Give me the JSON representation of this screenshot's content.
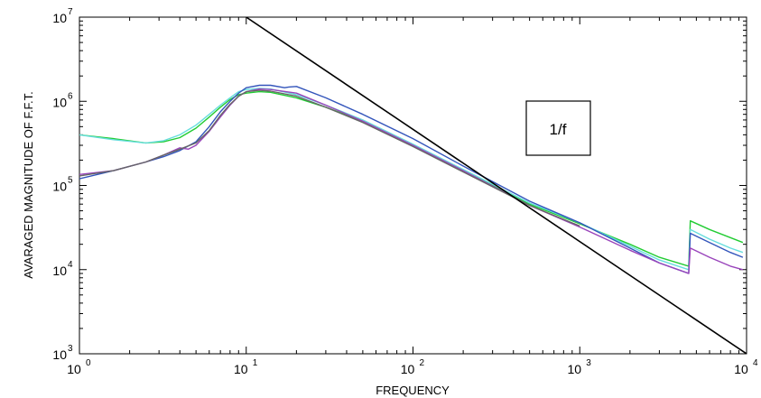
{
  "chart_data": {
    "type": "line",
    "title": "",
    "xlabel": "FREQUENCY",
    "ylabel": "AVARAGED MAGNITUDE OF F.F.T.",
    "x_scale": "log",
    "y_scale": "log",
    "xlim": [
      1,
      10000
    ],
    "ylim": [
      1000,
      10000000
    ],
    "grid": false,
    "x_ticks": [
      {
        "base": "10",
        "exp": "0",
        "value": 1
      },
      {
        "base": "10",
        "exp": "1",
        "value": 10
      },
      {
        "base": "10",
        "exp": "2",
        "value": 100
      },
      {
        "base": "10",
        "exp": "3",
        "value": 1000
      },
      {
        "base": "10",
        "exp": "4",
        "value": 10000
      }
    ],
    "y_ticks": [
      {
        "base": "10",
        "exp": "3",
        "value": 1000
      },
      {
        "base": "10",
        "exp": "4",
        "value": 10000
      },
      {
        "base": "10",
        "exp": "5",
        "value": 100000
      },
      {
        "base": "10",
        "exp": "6",
        "value": 1000000
      },
      {
        "base": "10",
        "exp": "7",
        "value": 10000000
      }
    ],
    "annotation": {
      "text": "1/f"
    },
    "reference_line": {
      "color": "#000000",
      "x": [
        10,
        10000
      ],
      "y": [
        10000000,
        1000
      ]
    },
    "series": [
      {
        "color": "#22cc33",
        "x": [
          1,
          1.6,
          2.5,
          3.2,
          4,
          5,
          6,
          7,
          8,
          9,
          10,
          12,
          14,
          20,
          30,
          50,
          100,
          200,
          500,
          1000,
          2000,
          3000,
          4500,
          4600,
          6000,
          8000,
          9500
        ],
        "y": [
          400000,
          360000,
          320000,
          330000,
          370000,
          480000,
          650000,
          850000,
          1050000,
          1200000,
          1250000,
          1300000,
          1280000,
          1100000,
          850000,
          580000,
          300000,
          150000,
          60000,
          35000,
          20000,
          14000,
          11000,
          38000,
          30000,
          24000,
          21000
        ]
      },
      {
        "color": "#66dddd",
        "x": [
          1,
          1.6,
          2.5,
          3.2,
          4,
          5,
          6,
          7,
          8,
          9,
          10,
          12,
          14,
          20,
          30,
          50,
          100,
          200,
          500,
          1000,
          2000,
          3000,
          4500,
          4600,
          6000,
          8000,
          9500
        ],
        "y": [
          400000,
          350000,
          320000,
          340000,
          400000,
          520000,
          700000,
          900000,
          1100000,
          1300000,
          1380000,
          1420000,
          1400000,
          1200000,
          900000,
          600000,
          310000,
          155000,
          62000,
          36000,
          19000,
          13000,
          10000,
          30000,
          23000,
          18000,
          16000
        ]
      },
      {
        "color": "#3355bb",
        "x": [
          1,
          1.6,
          2.5,
          3.2,
          4,
          5,
          6,
          7,
          8,
          9,
          10,
          12,
          14,
          17,
          18,
          20,
          30,
          50,
          100,
          200,
          500,
          1000,
          2000,
          3000,
          4500,
          4600,
          6000,
          8000,
          9500
        ],
        "y": [
          120000,
          150000,
          190000,
          220000,
          260000,
          330000,
          500000,
          750000,
          1000000,
          1250000,
          1450000,
          1550000,
          1550000,
          1450000,
          1480000,
          1500000,
          1100000,
          700000,
          360000,
          170000,
          65000,
          36000,
          18000,
          12000,
          9000,
          27000,
          21000,
          16000,
          14000
        ]
      },
      {
        "color": "#9944bb",
        "x": [
          1,
          1.6,
          2.5,
          3.2,
          4,
          4.5,
          5,
          6,
          7,
          8,
          9,
          10,
          12,
          14,
          20,
          30,
          50,
          100,
          200,
          500,
          1000,
          2000,
          3000,
          4500,
          4600,
          6000,
          8000,
          9500
        ],
        "y": [
          135000,
          150000,
          190000,
          230000,
          280000,
          270000,
          300000,
          440000,
          650000,
          900000,
          1150000,
          1300000,
          1400000,
          1380000,
          1250000,
          900000,
          580000,
          300000,
          150000,
          58000,
          32000,
          17000,
          12000,
          9000,
          18000,
          14000,
          11000,
          10000
        ]
      },
      {
        "color": "#666666",
        "x": [
          1,
          1.6,
          2.5,
          3.2,
          4,
          5,
          6,
          7,
          8,
          9,
          10,
          12,
          14,
          20,
          30,
          50,
          100,
          200,
          500,
          1000
        ],
        "y": [
          130000,
          150000,
          190000,
          230000,
          270000,
          320000,
          450000,
          680000,
          920000,
          1150000,
          1300000,
          1350000,
          1320000,
          1150000,
          850000,
          560000,
          290000,
          145000,
          58000,
          33000
        ]
      }
    ]
  }
}
